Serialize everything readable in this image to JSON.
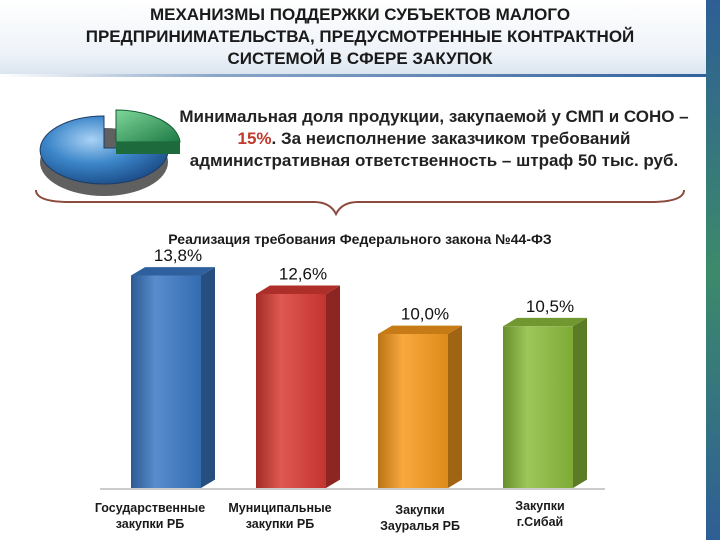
{
  "title_lines": [
    "МЕХАНИЗМЫ ПОДДЕРЖКИ СУБЪЕКТОВ МАЛОГО",
    "ПРЕДПРИНИМАТЕЛЬСТВА, ПРЕДУСМОТРЕННЫЕ КОНТРАКТНОЙ",
    "СИСТЕМОЙ В СФЕРЕ ЗАКУПОК"
  ],
  "info": {
    "part1": "Минимальная доля продукции, закупаемой у СМП и СОНО – ",
    "highlight": "15%",
    "part2": ". За неисполнение заказчиком требований административная ответственность – штраф 50 тыс. руб."
  },
  "colors": {
    "highlight": "#c0392b",
    "bars": [
      "#3a78c4",
      "#d93a34",
      "#f79a1c",
      "#8cbd3c"
    ]
  },
  "chart_data": {
    "type": "bar",
    "title": "Реализация требования Федерального закона №44-ФЗ",
    "categories": [
      "Государственные закупки РБ",
      "Муниципальные закупки РБ",
      "Закупки Зауралья РБ",
      "Закупки г.Сибай"
    ],
    "values": [
      13.8,
      12.6,
      10.0,
      10.5
    ],
    "value_labels": [
      "13,8%",
      "12,6%",
      "10,0%",
      "10,5%"
    ],
    "category_label_lines": [
      [
        "Государственные",
        "закупки РБ"
      ],
      [
        "Муниципальные",
        "закупки РБ"
      ],
      [
        "Закупки",
        "Зауралья РБ"
      ],
      [
        "Закупки",
        "г.Сибай"
      ]
    ],
    "bar_style": "3d-cylinder-box",
    "grid": false,
    "legend": "none"
  }
}
